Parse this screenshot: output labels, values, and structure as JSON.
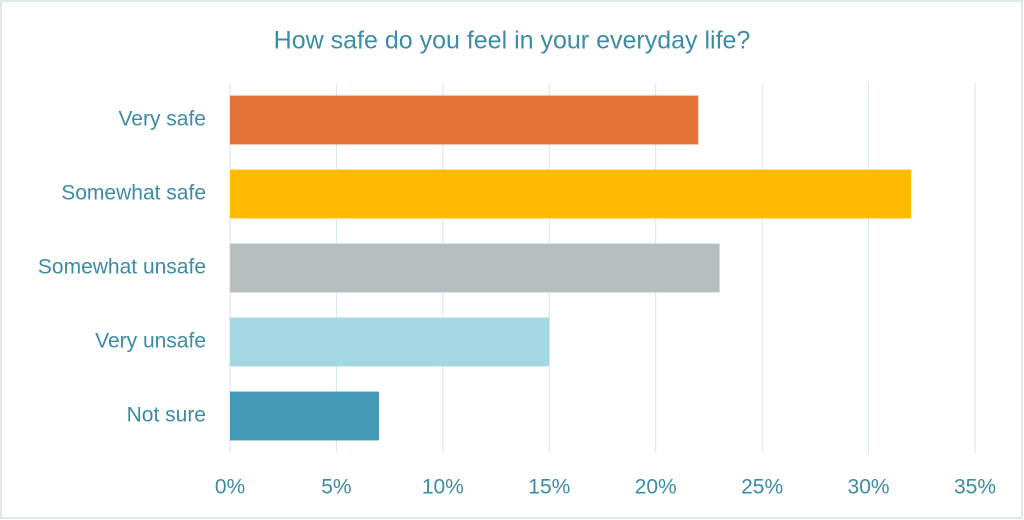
{
  "chart_data": {
    "type": "bar",
    "orientation": "horizontal",
    "title": "How safe do you feel in your everyday life?",
    "categories": [
      "Very safe",
      "Somewhat safe",
      "Somewhat unsafe",
      "Very unsafe",
      "Not sure"
    ],
    "values": [
      22,
      32,
      23,
      15,
      7
    ],
    "colors": [
      "#e57236",
      "#ffbb00",
      "#b6bfbe",
      "#a4d8e5",
      "#4499b6"
    ],
    "xlim": [
      0,
      35
    ],
    "xticks": [
      {
        "value": 0,
        "label": "0%"
      },
      {
        "value": 5,
        "label": "5%"
      },
      {
        "value": 10,
        "label": "10%"
      },
      {
        "value": 15,
        "label": "15%"
      },
      {
        "value": 20,
        "label": "20%"
      },
      {
        "value": 25,
        "label": "25%"
      },
      {
        "value": 30,
        "label": "30%"
      },
      {
        "value": 35,
        "label": "35%"
      }
    ],
    "grid": true
  }
}
